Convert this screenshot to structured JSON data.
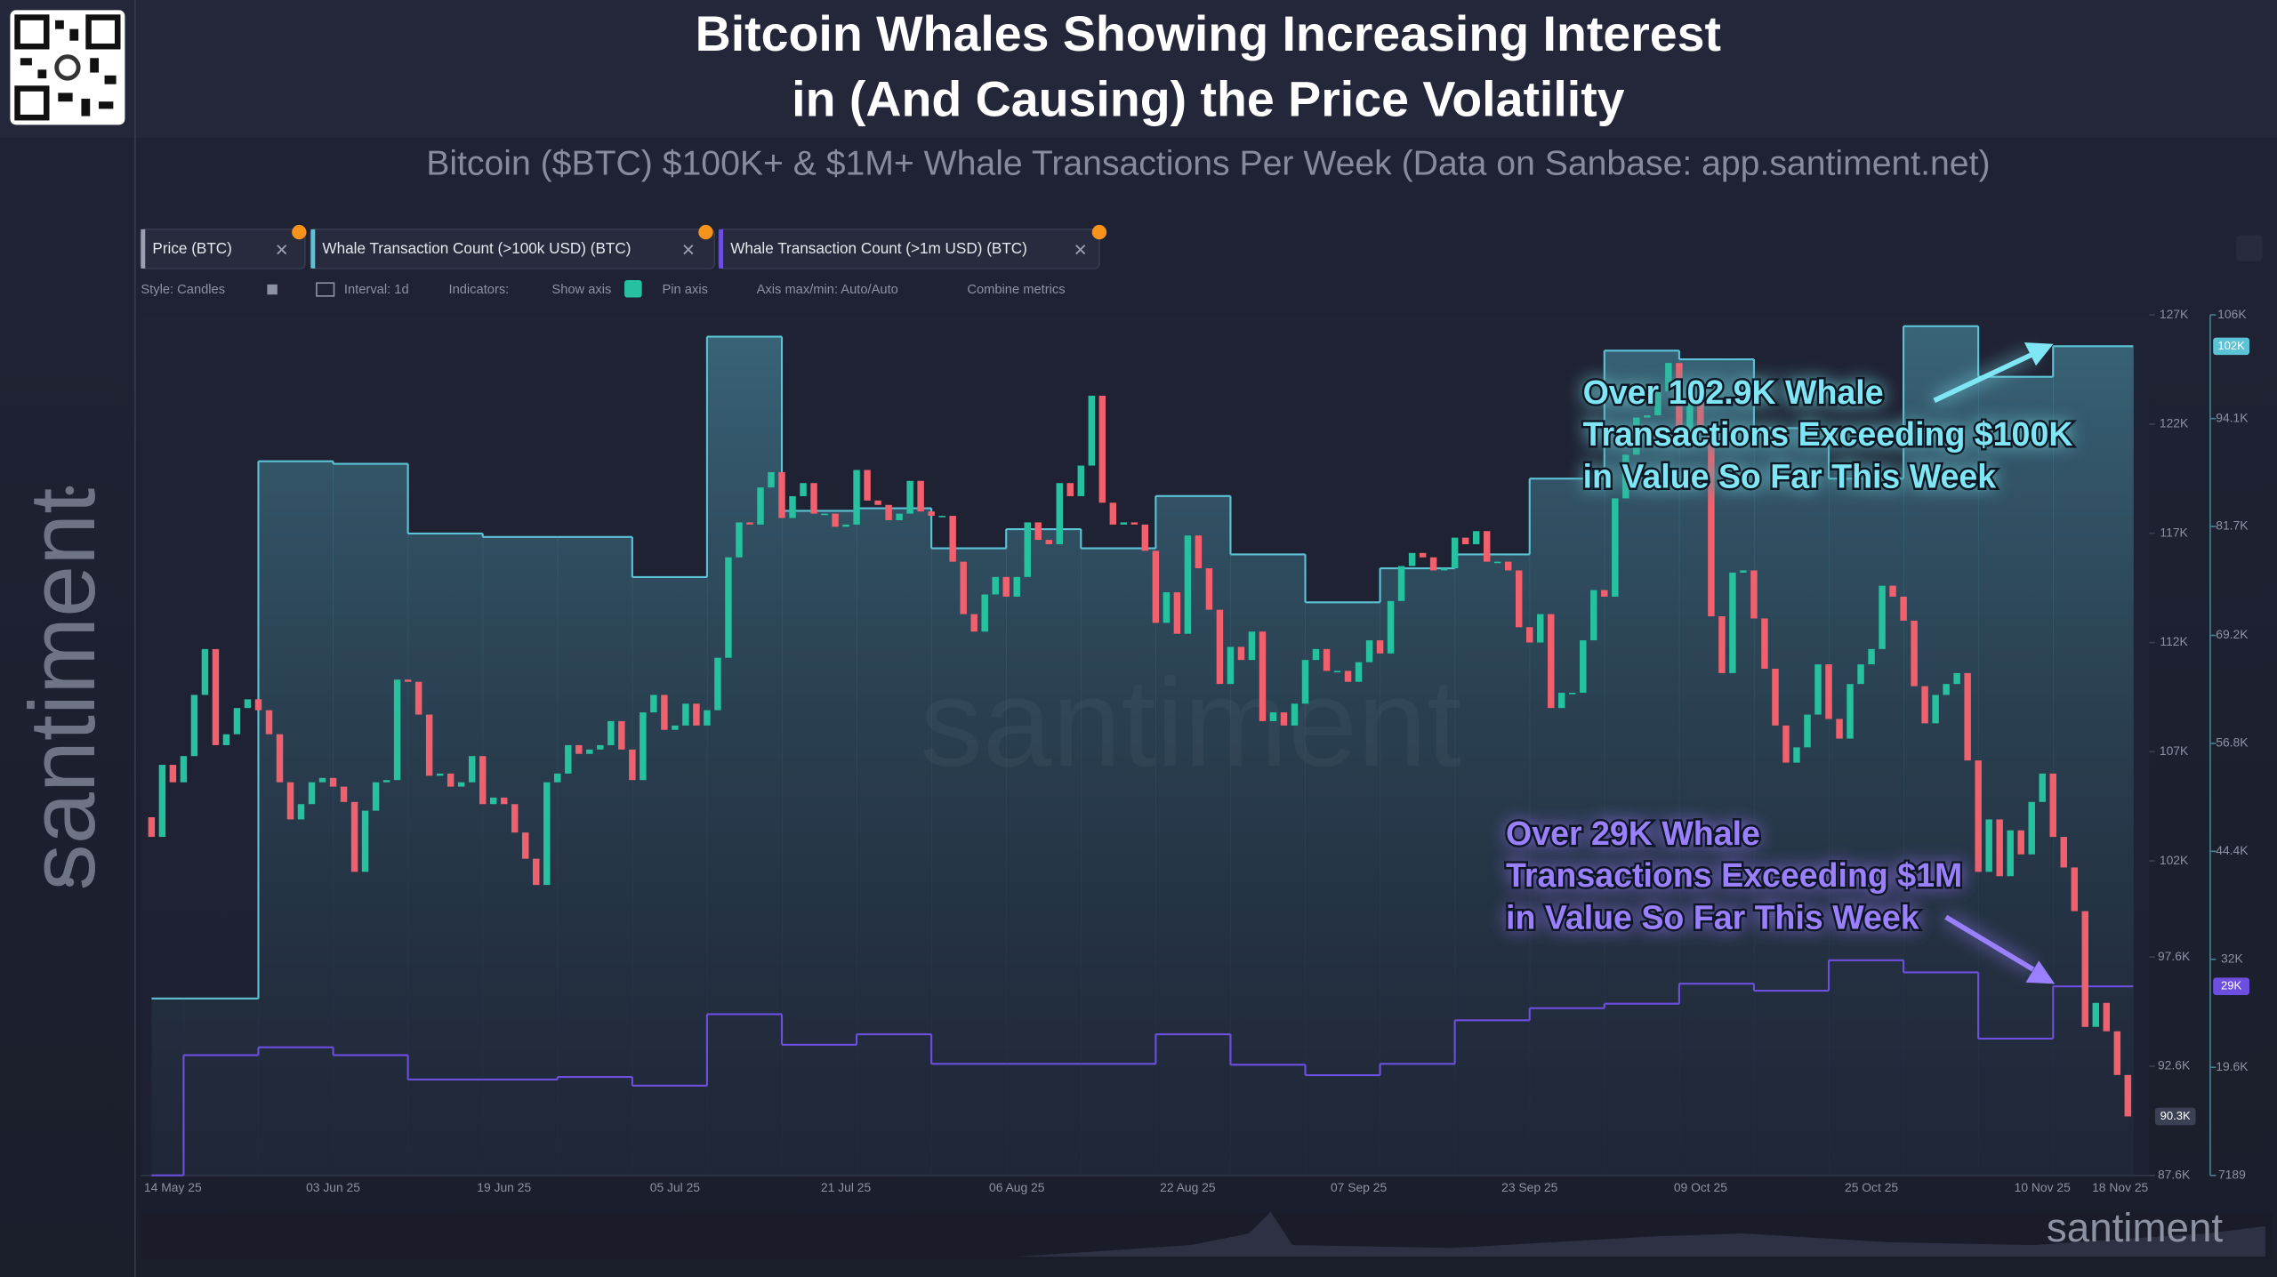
{
  "header": {
    "title": [
      "Bitcoin Whales Showing Increasing Interest",
      "in (And Causing) the Price Volatility"
    ],
    "subtitle": "Bitcoin ($BTC) $100K+ & $1M+ Whale Transactions Per Week (Data on Sanbase: app.santiment.net)",
    "brand": "santiment"
  },
  "toolbar": [
    "Style: Candles",
    "Interval: 1d",
    "Indicators:",
    "Show axis",
    "Pin axis",
    "Axis max/min: Auto/Auto",
    "Combine metrics"
  ],
  "chart_data": {
    "type": "candlestick",
    "xlim": [
      "2025-05-16",
      "2025-11-20"
    ],
    "xticks": [
      {
        "value": "2025-05-14",
        "label": "14 May 25"
      },
      {
        "value": "2025-06-03",
        "label": "03 Jun 25"
      },
      {
        "value": "2025-06-19",
        "label": "19 Jun 25"
      },
      {
        "value": "2025-07-05",
        "label": "05 Jul 25"
      },
      {
        "value": "2025-07-21",
        "label": "21 Jul 25"
      },
      {
        "value": "2025-08-06",
        "label": "06 Aug 25"
      },
      {
        "value": "2025-08-22",
        "label": "22 Aug 25"
      },
      {
        "value": "2025-09-07",
        "label": "07 Sep 25"
      },
      {
        "value": "2025-09-23",
        "label": "23 Sep 25"
      },
      {
        "value": "2025-10-09",
        "label": "09 Oct 25"
      },
      {
        "value": "2025-10-25",
        "label": "25 Oct 25"
      },
      {
        "value": "2025-11-10",
        "label": "10 Nov 25"
      },
      {
        "value": "2025-11-18",
        "label": "18 Nov 25"
      }
    ],
    "ylim": [
      87600,
      127000
    ],
    "yticks": [
      {
        "value": 127000,
        "label": "127K"
      },
      {
        "value": 122000,
        "label": "122K"
      },
      {
        "value": 117000,
        "label": "117K"
      },
      {
        "value": 112000,
        "label": "112K"
      },
      {
        "value": 107000,
        "label": "107K"
      },
      {
        "value": 102000,
        "label": "102K"
      },
      {
        "value": 97600,
        "label": "97.6K"
      },
      {
        "value": 92600,
        "label": "92.6K"
      },
      {
        "value": 87600,
        "label": "87.6K"
      }
    ],
    "y2lim": [
      7189,
      106000
    ],
    "y2ticks": [
      {
        "value": 106000,
        "label": "106K"
      },
      {
        "value": 94100,
        "label": "94.1K"
      },
      {
        "value": 81700,
        "label": "81.7K"
      },
      {
        "value": 69200,
        "label": "69.2K"
      },
      {
        "value": 56800,
        "label": "56.8K"
      },
      {
        "value": 44400,
        "label": "44.4K"
      },
      {
        "value": 32000,
        "label": "32K"
      },
      {
        "value": 19600,
        "label": "19.6K"
      },
      7189
    ],
    "x": [
      "2025-05-17",
      "2025-05-18",
      "2025-05-19",
      "2025-05-20",
      "2025-05-21",
      "2025-05-22",
      "2025-05-23",
      "2025-05-24",
      "2025-05-25",
      "2025-05-26",
      "2025-05-27",
      "2025-05-28",
      "2025-05-29",
      "2025-05-30",
      "2025-05-31",
      "2025-06-01",
      "2025-06-02",
      "2025-06-03",
      "2025-06-04",
      "2025-06-05",
      "2025-06-06",
      "2025-06-07",
      "2025-06-08",
      "2025-06-09",
      "2025-06-10",
      "2025-06-11",
      "2025-06-12",
      "2025-06-13",
      "2025-06-14",
      "2025-06-15",
      "2025-06-16",
      "2025-06-17",
      "2025-06-18",
      "2025-06-19",
      "2025-06-20",
      "2025-06-21",
      "2025-06-22",
      "2025-06-23",
      "2025-06-24",
      "2025-06-25",
      "2025-06-26",
      "2025-06-27",
      "2025-06-28",
      "2025-06-29",
      "2025-06-30",
      "2025-07-01",
      "2025-07-02",
      "2025-07-03",
      "2025-07-04",
      "2025-07-05",
      "2025-07-06",
      "2025-07-07",
      "2025-07-08",
      "2025-07-09",
      "2025-07-10",
      "2025-07-11",
      "2025-07-12",
      "2025-07-13",
      "2025-07-14",
      "2025-07-15",
      "2025-07-16",
      "2025-07-17",
      "2025-07-18",
      "2025-07-19",
      "2025-07-20",
      "2025-07-21",
      "2025-07-22",
      "2025-07-23",
      "2025-07-24",
      "2025-07-25",
      "2025-07-26",
      "2025-07-27",
      "2025-07-28",
      "2025-07-29",
      "2025-07-30",
      "2025-07-31",
      "2025-08-01",
      "2025-08-02",
      "2025-08-03",
      "2025-08-04",
      "2025-08-05",
      "2025-08-06",
      "2025-08-07",
      "2025-08-08",
      "2025-08-09",
      "2025-08-10",
      "2025-08-11",
      "2025-08-12",
      "2025-08-13",
      "2025-08-14",
      "2025-08-15",
      "2025-08-16",
      "2025-08-17",
      "2025-08-18",
      "2025-08-19",
      "2025-08-20",
      "2025-08-21",
      "2025-08-22",
      "2025-08-23",
      "2025-08-24",
      "2025-08-25",
      "2025-08-26",
      "2025-08-27",
      "2025-08-28",
      "2025-08-29",
      "2025-08-30",
      "2025-08-31",
      "2025-09-01",
      "2025-09-02",
      "2025-09-03",
      "2025-09-04",
      "2025-09-05",
      "2025-09-06",
      "2025-09-07",
      "2025-09-08",
      "2025-09-09",
      "2025-09-10",
      "2025-09-11",
      "2025-09-12",
      "2025-09-13",
      "2025-09-14",
      "2025-09-15",
      "2025-09-16",
      "2025-09-17",
      "2025-09-18",
      "2025-09-19",
      "2025-09-20",
      "2025-09-21",
      "2025-09-22",
      "2025-09-23",
      "2025-09-24",
      "2025-09-25",
      "2025-09-26",
      "2025-09-27",
      "2025-09-28",
      "2025-09-29",
      "2025-09-30",
      "2025-10-01",
      "2025-10-02",
      "2025-10-03",
      "2025-10-04",
      "2025-10-05",
      "2025-10-06",
      "2025-10-07",
      "2025-10-08",
      "2025-10-09",
      "2025-10-10",
      "2025-10-11",
      "2025-10-12",
      "2025-10-13",
      "2025-10-14",
      "2025-10-15",
      "2025-10-16",
      "2025-10-17",
      "2025-10-18",
      "2025-10-19",
      "2025-10-20",
      "2025-10-21",
      "2025-10-22",
      "2025-10-23",
      "2025-10-24",
      "2025-10-25",
      "2025-10-26",
      "2025-10-27",
      "2025-10-28",
      "2025-10-29",
      "2025-10-30",
      "2025-10-31",
      "2025-11-01",
      "2025-11-02",
      "2025-11-03",
      "2025-11-04",
      "2025-11-05",
      "2025-11-06",
      "2025-11-07",
      "2025-11-08",
      "2025-11-09",
      "2025-11-10",
      "2025-11-11",
      "2025-11-12",
      "2025-11-13",
      "2025-11-14",
      "2025-11-15",
      "2025-11-16",
      "2025-11-17",
      "2025-11-18"
    ],
    "series": [
      {
        "name": "Price (BTC)",
        "type": "candlestick",
        "up_color": "#26c2a0",
        "down_color": "#f0616d",
        "last_label": "90.3K",
        "open": [
          104000,
          103100,
          106400,
          105600,
          106800,
          109600,
          111700,
          107300,
          107800,
          109000,
          109400,
          108900,
          107800,
          105600,
          103900,
          104600,
          105600,
          105800,
          105400,
          104700,
          101500,
          104300,
          105600,
          105700,
          110300,
          110200,
          108700,
          105900,
          106000,
          105400,
          105600,
          106800,
          104600,
          104900,
          104600,
          103300,
          102100,
          100900,
          105600,
          106000,
          107300,
          106900,
          107100,
          107300,
          108400,
          107100,
          105700,
          108800,
          109600,
          108000,
          108200,
          109200,
          108200,
          108900,
          111300,
          115900,
          117500,
          117400,
          119100,
          119800,
          117700,
          118700,
          119300,
          117900,
          117900,
          117300,
          117400,
          119900,
          118500,
          118300,
          117600,
          117900,
          119400,
          118000,
          117800,
          117800,
          115700,
          113300,
          112500,
          114200,
          115000,
          114100,
          115000,
          117500,
          116700,
          116500,
          119300,
          118700,
          120100,
          123300,
          118400,
          117400,
          117500,
          117400,
          116200,
          112900,
          114300,
          112400,
          116900,
          115400,
          113500,
          110100,
          111800,
          111200,
          112500,
          108400,
          108800,
          108200,
          109200,
          111200,
          111700,
          110700,
          110700,
          110200,
          111100,
          112100,
          111500,
          113900,
          115500,
          116100,
          115900,
          115300,
          115400,
          116800,
          116500,
          117100,
          115700,
          115700,
          115300,
          112700,
          112000,
          113300,
          109000,
          109700,
          109700,
          112100,
          114400,
          114100,
          118600,
          120600,
          122300,
          122400,
          123500,
          124800,
          121500,
          123300,
          121700,
          113200,
          110600,
          115200,
          115300,
          113100,
          110800,
          108200,
          106500,
          107200,
          108700,
          111000,
          108500,
          107600,
          110100,
          111000,
          111700,
          114600,
          114100,
          113000,
          110000,
          108300,
          109600,
          110100,
          110600,
          106600,
          101500,
          103900,
          101300,
          103400,
          102300,
          104700,
          106000,
          103100,
          101700,
          99700,
          94400,
          95500,
          94200,
          92200
        ],
        "close": [
          103100,
          106400,
          105600,
          106800,
          109600,
          111700,
          107300,
          107800,
          109000,
          109400,
          108900,
          107800,
          105600,
          103900,
          104600,
          105600,
          105800,
          105400,
          104700,
          101500,
          104300,
          105600,
          105700,
          110300,
          110200,
          108700,
          105900,
          106000,
          105400,
          105600,
          106800,
          104600,
          104900,
          104600,
          103300,
          102100,
          100900,
          105600,
          106000,
          107300,
          106900,
          107100,
          107300,
          108400,
          107100,
          105700,
          108800,
          109600,
          108000,
          108200,
          109200,
          108200,
          108900,
          111300,
          115900,
          117500,
          117400,
          119100,
          119800,
          117700,
          118700,
          119300,
          117900,
          117900,
          117300,
          117400,
          119900,
          118500,
          118300,
          117600,
          117900,
          119400,
          118000,
          117800,
          117800,
          115700,
          113300,
          112500,
          114200,
          115000,
          114100,
          115000,
          117500,
          116700,
          116500,
          119300,
          118700,
          120100,
          123300,
          118400,
          117400,
          117500,
          117400,
          116200,
          112900,
          114300,
          112400,
          116900,
          115400,
          113500,
          110100,
          111800,
          111200,
          112500,
          108400,
          108800,
          108200,
          109200,
          111200,
          111700,
          110700,
          110700,
          110200,
          111100,
          112100,
          111500,
          113900,
          115500,
          116100,
          115900,
          115300,
          115400,
          116800,
          116500,
          117100,
          115700,
          115700,
          115300,
          112700,
          112000,
          113300,
          109000,
          109700,
          109700,
          112100,
          114400,
          114100,
          118600,
          120600,
          122300,
          122400,
          123500,
          124800,
          121500,
          123300,
          121700,
          113200,
          110600,
          115200,
          115300,
          113100,
          110800,
          108200,
          106500,
          107200,
          108700,
          111000,
          108500,
          107600,
          110100,
          111000,
          111700,
          114600,
          114100,
          113000,
          110000,
          108300,
          109600,
          110100,
          110600,
          106600,
          101500,
          103900,
          101300,
          103400,
          102300,
          104700,
          106000,
          103100,
          101700,
          99700,
          94400,
          95500,
          94200,
          92200,
          90300
        ]
      },
      {
        "name": "Whale Transaction Count (>100k USD) (BTC)",
        "type": "step",
        "axis": "y2",
        "color": "#5cc3d6",
        "fill": true,
        "last_label": "102K",
        "x": [
          "2025-05-17",
          "2025-05-20",
          "2025-05-27",
          "2025-06-03",
          "2025-06-10",
          "2025-06-17",
          "2025-06-24",
          "2025-07-01",
          "2025-07-08",
          "2025-07-15",
          "2025-07-22",
          "2025-07-29",
          "2025-08-05",
          "2025-08-12",
          "2025-08-19",
          "2025-08-26",
          "2025-09-02",
          "2025-09-09",
          "2025-09-16",
          "2025-09-23",
          "2025-09-30",
          "2025-10-07",
          "2025-10-14",
          "2025-10-21",
          "2025-10-28",
          "2025-11-04",
          "2025-11-11"
        ],
        "values": [
          27500,
          27500,
          89200,
          88900,
          80900,
          80500,
          80500,
          75900,
          103500,
          83500,
          83800,
          79200,
          81400,
          79200,
          85200,
          78500,
          73000,
          76900,
          78500,
          87200,
          101900,
          100900,
          93000,
          87200,
          104700,
          98900,
          102400
        ]
      },
      {
        "name": "Whale Transaction Count (>1m USD) (BTC)",
        "type": "step",
        "axis": "y2",
        "color": "#6d4fe0",
        "fill": false,
        "last_label": "29K",
        "x": [
          "2025-05-17",
          "2025-05-20",
          "2025-05-27",
          "2025-06-03",
          "2025-06-10",
          "2025-06-17",
          "2025-06-24",
          "2025-07-01",
          "2025-07-08",
          "2025-07-15",
          "2025-07-22",
          "2025-07-29",
          "2025-08-05",
          "2025-08-12",
          "2025-08-19",
          "2025-08-26",
          "2025-09-02",
          "2025-09-09",
          "2025-09-16",
          "2025-09-23",
          "2025-09-30",
          "2025-10-07",
          "2025-10-14",
          "2025-10-21",
          "2025-10-28",
          "2025-11-04",
          "2025-11-11"
        ],
        "values": [
          7200,
          21000,
          21900,
          21000,
          18200,
          18200,
          18500,
          17500,
          25700,
          22200,
          23400,
          20000,
          20000,
          20000,
          23400,
          19900,
          18700,
          20000,
          25000,
          26400,
          26900,
          29200,
          28400,
          31900,
          30500,
          22900,
          28900
        ]
      }
    ],
    "annotations": [
      {
        "color": "#7fe6f5",
        "lines": [
          "Over 102.9K Whale",
          "Transactions Exceeding $100K",
          "in Value So Far This Week"
        ]
      },
      {
        "color": "#9a80ff",
        "lines": [
          "Over 29K Whale",
          "Transactions Exceeding $1M",
          "in Value So Far This Week"
        ]
      }
    ]
  }
}
